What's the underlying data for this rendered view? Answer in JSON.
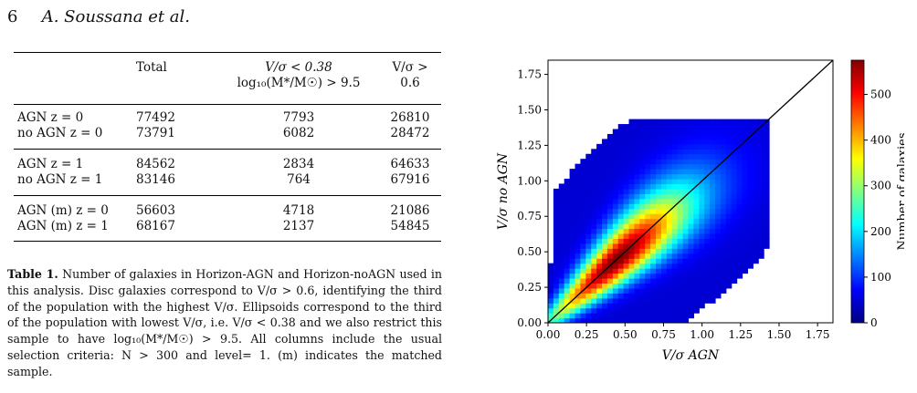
{
  "header": {
    "page_number": "6",
    "authors": "A. Soussana et al."
  },
  "table": {
    "columns": [
      "",
      "Total",
      "V/σ < 0.38",
      "V/σ > 0.6"
    ],
    "col3_sub": "log₁₀(M*/M☉) > 9.5",
    "groups": [
      [
        [
          "AGN z = 0",
          "77492",
          "7793",
          "26810"
        ],
        [
          "no AGN z = 0",
          "73791",
          "6082",
          "28472"
        ]
      ],
      [
        [
          "AGN z = 1",
          "84562",
          "2834",
          "64633"
        ],
        [
          "no AGN z = 1",
          "83146",
          "764",
          "67916"
        ]
      ],
      [
        [
          "AGN (m) z = 0",
          "56603",
          "4718",
          "21086"
        ],
        [
          "AGN (m) z = 1",
          "68167",
          "2137",
          "54845"
        ]
      ]
    ]
  },
  "caption": {
    "label": "Table 1.",
    "text": "Number of galaxies in Horizon-AGN and Horizon-noAGN used in this analysis. Disc galaxies correspond to V/σ > 0.6, identifying the third of the population with the highest V/σ. Ellipsoids correspond to the third of the population with lowest V/σ, i.e. V/σ < 0.38 and we also restrict this sample to have log₁₀(M*/M☉) > 9.5. All columns include the usual selection criteria: N > 300 and level= 1. (m) indicates the matched sample."
  },
  "chart_data": {
    "type": "heatmap",
    "xlabel": "V/σ AGN",
    "ylabel": "V/σ no AGN",
    "xlim": [
      0,
      1.85
    ],
    "ylim": [
      0,
      1.85
    ],
    "xticks": [
      "0.00",
      "0.25",
      "0.50",
      "0.75",
      "1.00",
      "1.25",
      "1.50",
      "1.75"
    ],
    "yticks": [
      "0.00",
      "0.25",
      "0.50",
      "0.75",
      "1.00",
      "1.25",
      "1.50",
      "1.75"
    ],
    "colorbar": {
      "label": "Number of galaxies",
      "ticks": [
        "0",
        "100",
        "200",
        "300",
        "400",
        "500"
      ],
      "max": 575
    },
    "one_to_one_line": true,
    "peak": {
      "x": 0.45,
      "y": 0.45,
      "count": 575
    }
  }
}
